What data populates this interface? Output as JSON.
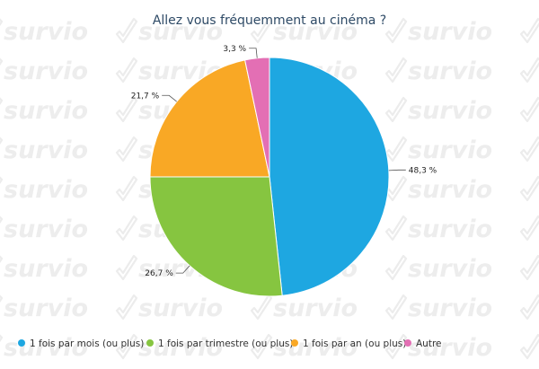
{
  "watermark": {
    "text": "survio"
  },
  "chart_data": {
    "type": "pie",
    "title": "Allez vous fréquemment au cinéma ?",
    "slices": [
      {
        "label": "1 fois par mois (ou plus)",
        "value": 48.3,
        "display": "48,3 %",
        "color": "#1ea7e1"
      },
      {
        "label": "1 fois par trimestre (ou plus)",
        "value": 26.7,
        "display": "26,7 %",
        "color": "#86c540"
      },
      {
        "label": "1 fois par an (ou plus)",
        "value": 21.7,
        "display": "21,7 %",
        "color": "#f9a825"
      },
      {
        "label": "Autre",
        "value": 3.3,
        "display": "3,3 %",
        "color": "#e36fb4"
      }
    ],
    "start_angle": "top, clockwise",
    "legend_position": "bottom"
  }
}
